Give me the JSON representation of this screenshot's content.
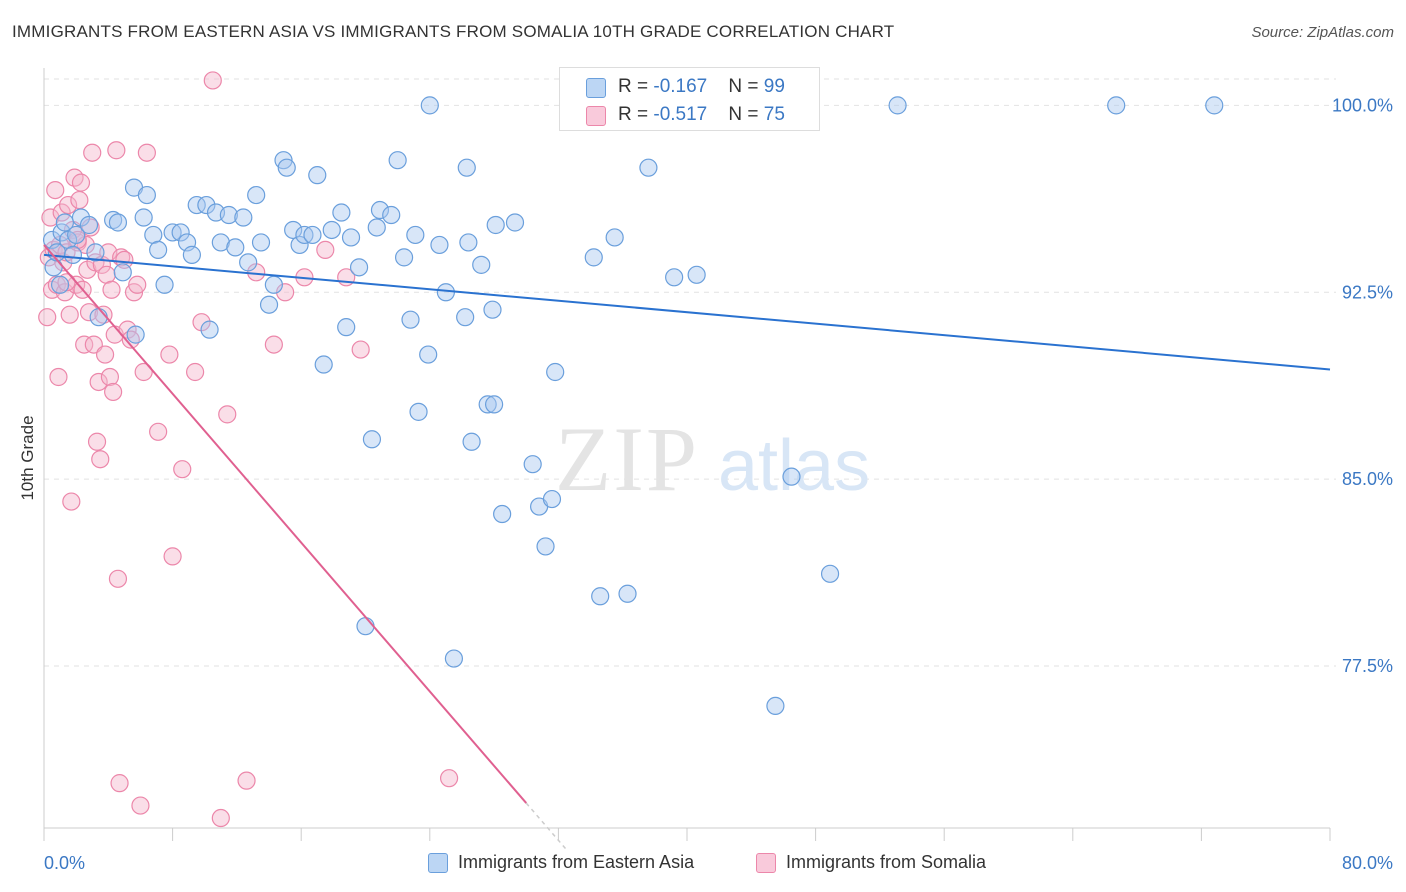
{
  "title": "IMMIGRANTS FROM EASTERN ASIA VS IMMIGRANTS FROM SOMALIA 10TH GRADE CORRELATION CHART",
  "source": "Source: ZipAtlas.com",
  "watermark": {
    "zip": "ZIP",
    "atlas": "atlas"
  },
  "legend": {
    "blue": {
      "r_label": "R = ",
      "r_value": "-0.167",
      "n_label": "N = ",
      "n_value": "99"
    },
    "pink": {
      "r_label": "R = ",
      "r_value": "-0.517",
      "n_label": "N = ",
      "n_value": "75"
    }
  },
  "bottom_legend": {
    "blue": "Immigrants from Eastern Asia",
    "pink": "Immigrants from Somalia"
  },
  "colors": {
    "blue_fill": "#a8c8f0",
    "blue_stroke": "#6a9fdc",
    "blue_line": "#2a72d0",
    "pink_fill": "#f5b6cb",
    "pink_stroke": "#ec87aa",
    "pink_line": "#e06090",
    "axis_text": "#3b78c4",
    "grid": "#e2e2e2"
  },
  "chart_data": {
    "type": "scatter",
    "title": "IMMIGRANTS FROM EASTERN ASIA VS IMMIGRANTS FROM SOMALIA 10TH GRADE CORRELATION CHART",
    "xlabel": "",
    "ylabel": "10th Grade",
    "xlim": [
      0,
      80
    ],
    "ylim": [
      71,
      101.5
    ],
    "x_tick_labels": [
      "0.0%",
      "80.0%"
    ],
    "y_ticks": [
      77.5,
      85.0,
      92.5,
      100.0
    ],
    "y_tick_labels": [
      "77.5%",
      "85.0%",
      "92.5%",
      "100.0%"
    ],
    "grid": "horizontal dashed",
    "legend_position": "top-center",
    "series": [
      {
        "name": "Immigrants from Eastern Asia",
        "color": "#a8c8f0",
        "trend": {
          "x": [
            0,
            80
          ],
          "y": [
            94.0,
            89.4
          ]
        },
        "points": [
          [
            0.5,
            94.6
          ],
          [
            0.6,
            93.5
          ],
          [
            0.8,
            94.1
          ],
          [
            1.0,
            92.8
          ],
          [
            1.1,
            94.9
          ],
          [
            1.3,
            95.3
          ],
          [
            1.5,
            94.6
          ],
          [
            1.8,
            94.0
          ],
          [
            2.0,
            94.8
          ],
          [
            2.3,
            95.5
          ],
          [
            2.8,
            95.2
          ],
          [
            3.2,
            94.1
          ],
          [
            3.4,
            91.5
          ],
          [
            4.3,
            95.4
          ],
          [
            4.6,
            95.3
          ],
          [
            4.9,
            93.3
          ],
          [
            5.6,
            96.7
          ],
          [
            5.7,
            90.8
          ],
          [
            6.2,
            95.5
          ],
          [
            6.4,
            96.4
          ],
          [
            6.8,
            94.8
          ],
          [
            7.1,
            94.2
          ],
          [
            7.5,
            92.8
          ],
          [
            8.0,
            94.9
          ],
          [
            8.5,
            94.9
          ],
          [
            8.9,
            94.5
          ],
          [
            9.2,
            94.0
          ],
          [
            9.5,
            96.0
          ],
          [
            10.1,
            96.0
          ],
          [
            10.3,
            91.0
          ],
          [
            10.7,
            95.7
          ],
          [
            11.0,
            94.5
          ],
          [
            11.5,
            95.6
          ],
          [
            11.9,
            94.3
          ],
          [
            12.4,
            95.5
          ],
          [
            12.7,
            93.7
          ],
          [
            13.2,
            96.4
          ],
          [
            13.5,
            94.5
          ],
          [
            14.0,
            92.0
          ],
          [
            14.3,
            92.8
          ],
          [
            14.9,
            97.8
          ],
          [
            15.1,
            97.5
          ],
          [
            15.5,
            95.0
          ],
          [
            15.9,
            94.4
          ],
          [
            16.2,
            94.8
          ],
          [
            16.7,
            94.8
          ],
          [
            17.0,
            97.2
          ],
          [
            17.4,
            89.6
          ],
          [
            17.9,
            95.0
          ],
          [
            18.5,
            95.7
          ],
          [
            18.8,
            91.1
          ],
          [
            19.1,
            94.7
          ],
          [
            19.6,
            93.5
          ],
          [
            20.4,
            86.6
          ],
          [
            20.7,
            95.1
          ],
          [
            20.9,
            95.8
          ],
          [
            21.6,
            95.6
          ],
          [
            22.0,
            97.8
          ],
          [
            22.4,
            93.9
          ],
          [
            22.8,
            91.4
          ],
          [
            23.1,
            94.8
          ],
          [
            23.3,
            87.7
          ],
          [
            23.9,
            90.0
          ],
          [
            24.6,
            94.4
          ],
          [
            25.0,
            92.5
          ],
          [
            26.2,
            91.5
          ],
          [
            26.3,
            97.5
          ],
          [
            26.4,
            94.5
          ],
          [
            26.6,
            86.5
          ],
          [
            27.2,
            93.6
          ],
          [
            27.6,
            88.0
          ],
          [
            27.9,
            91.8
          ],
          [
            28.1,
            95.2
          ],
          [
            28.5,
            83.6
          ],
          [
            29.3,
            95.3
          ],
          [
            30.4,
            85.6
          ],
          [
            30.8,
            83.9
          ],
          [
            31.2,
            82.3
          ],
          [
            31.6,
            84.2
          ],
          [
            31.8,
            89.3
          ],
          [
            34.2,
            93.9
          ],
          [
            34.6,
            80.3
          ],
          [
            35.5,
            94.7
          ],
          [
            36.3,
            80.4
          ],
          [
            37.6,
            97.5
          ],
          [
            39.2,
            93.1
          ],
          [
            40.6,
            93.2
          ],
          [
            45.5,
            75.9
          ],
          [
            46.5,
            85.1
          ],
          [
            48.9,
            81.2
          ],
          [
            53.1,
            100.0
          ],
          [
            66.7,
            100.0
          ],
          [
            72.8,
            100.0
          ],
          [
            28.0,
            88.0
          ],
          [
            20.0,
            79.1
          ],
          [
            25.5,
            77.8
          ],
          [
            24.0,
            100.0
          ],
          [
            36.5,
            100.0
          ],
          [
            38.3,
            100.0
          ]
        ]
      },
      {
        "name": "Immigrants from Somalia",
        "color": "#f5b6cb",
        "trend": {
          "x": [
            0,
            30
          ],
          "y": [
            94.4,
            72.0
          ]
        },
        "points": [
          [
            0.2,
            91.5
          ],
          [
            0.3,
            93.9
          ],
          [
            0.4,
            95.5
          ],
          [
            0.5,
            92.6
          ],
          [
            0.6,
            94.2
          ],
          [
            0.7,
            96.6
          ],
          [
            0.8,
            92.8
          ],
          [
            0.9,
            89.1
          ],
          [
            1.0,
            94.4
          ],
          [
            1.1,
            95.7
          ],
          [
            1.2,
            93.7
          ],
          [
            1.3,
            92.5
          ],
          [
            1.4,
            94.1
          ],
          [
            1.5,
            96.0
          ],
          [
            1.6,
            91.6
          ],
          [
            1.7,
            84.1
          ],
          [
            1.8,
            95.0
          ],
          [
            1.9,
            97.1
          ],
          [
            2.0,
            92.8
          ],
          [
            2.1,
            94.5
          ],
          [
            2.2,
            96.2
          ],
          [
            2.3,
            96.9
          ],
          [
            2.4,
            92.6
          ],
          [
            2.5,
            90.4
          ],
          [
            2.6,
            94.4
          ],
          [
            2.7,
            93.4
          ],
          [
            2.8,
            91.7
          ],
          [
            2.9,
            95.1
          ],
          [
            3.0,
            98.1
          ],
          [
            3.1,
            90.4
          ],
          [
            3.2,
            93.7
          ],
          [
            3.3,
            86.5
          ],
          [
            3.4,
            88.9
          ],
          [
            3.5,
            85.8
          ],
          [
            3.6,
            93.6
          ],
          [
            3.7,
            91.6
          ],
          [
            3.8,
            90.0
          ],
          [
            3.9,
            93.2
          ],
          [
            4.0,
            94.1
          ],
          [
            4.1,
            89.1
          ],
          [
            4.2,
            92.6
          ],
          [
            4.3,
            88.5
          ],
          [
            4.4,
            90.8
          ],
          [
            4.5,
            98.2
          ],
          [
            4.6,
            81.0
          ],
          [
            4.7,
            72.8
          ],
          [
            4.8,
            93.9
          ],
          [
            5.0,
            93.8
          ],
          [
            5.2,
            91.0
          ],
          [
            5.4,
            90.6
          ],
          [
            5.6,
            92.5
          ],
          [
            5.8,
            92.8
          ],
          [
            6.0,
            71.9
          ],
          [
            6.2,
            89.3
          ],
          [
            6.4,
            98.1
          ],
          [
            7.1,
            86.9
          ],
          [
            7.8,
            90.0
          ],
          [
            8.0,
            81.9
          ],
          [
            8.6,
            85.4
          ],
          [
            9.4,
            89.3
          ],
          [
            9.8,
            91.3
          ],
          [
            10.5,
            101.0
          ],
          [
            11.0,
            71.4
          ],
          [
            11.4,
            87.6
          ],
          [
            12.6,
            72.9
          ],
          [
            13.2,
            93.3
          ],
          [
            15.0,
            92.5
          ],
          [
            14.3,
            90.4
          ],
          [
            16.2,
            93.1
          ],
          [
            17.5,
            94.2
          ],
          [
            18.8,
            93.1
          ],
          [
            19.7,
            90.2
          ],
          [
            25.2,
            73.0
          ],
          [
            2.1,
            94.6
          ],
          [
            1.4,
            92.9
          ]
        ]
      }
    ]
  }
}
